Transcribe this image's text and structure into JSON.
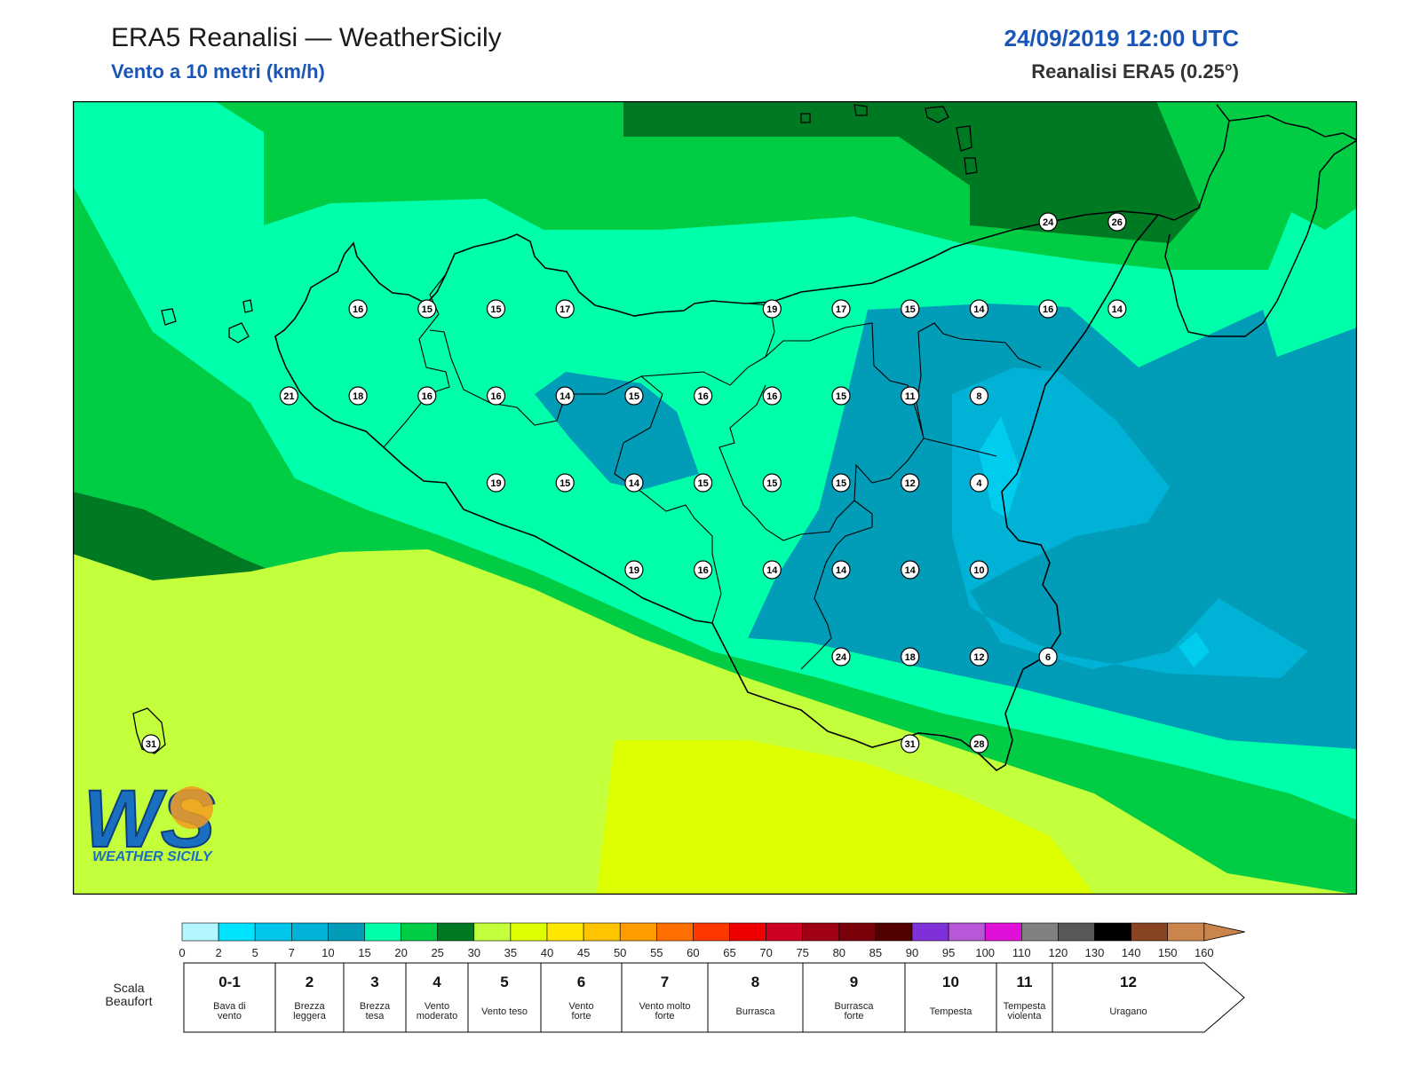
{
  "header": {
    "title": "ERA5 Reanalisi — WeatherSicily",
    "subtitle": "Vento a 10 metri (km/h)",
    "datetime": "24/09/2019 12:00 UTC",
    "model": "Reanalisi ERA5 (0.25°)"
  },
  "logo": {
    "text": "WS",
    "caption": "WEATHER SICILY"
  },
  "stations": [
    {
      "value": "16",
      "x": 6.8,
      "y": 52.9
    },
    {
      "value": "15",
      "x": 7.55,
      "y": 52.9
    },
    {
      "value": "15",
      "x": 8.3,
      "y": 52.9
    },
    {
      "value": "17",
      "x": 9.05,
      "y": 52.9
    },
    {
      "value": "19",
      "x": 11.3,
      "y": 52.9
    },
    {
      "value": "17",
      "x": 12.05,
      "y": 52.9
    },
    {
      "value": "15",
      "x": 12.8,
      "y": 52.9
    },
    {
      "value": "14",
      "x": 13.55,
      "y": 52.9
    },
    {
      "value": "16",
      "x": 14.3,
      "y": 52.9
    },
    {
      "value": "14",
      "x": 15.05,
      "y": 52.9
    },
    {
      "value": "21",
      "x": 6.05,
      "y": 52.15
    },
    {
      "value": "18",
      "x": 6.8,
      "y": 52.15
    },
    {
      "value": "16",
      "x": 7.55,
      "y": 52.15
    },
    {
      "value": "16",
      "x": 8.3,
      "y": 52.15
    },
    {
      "value": "14",
      "x": 9.05,
      "y": 52.15
    },
    {
      "value": "15",
      "x": 9.8,
      "y": 52.15
    },
    {
      "value": "16",
      "x": 10.55,
      "y": 52.15
    },
    {
      "value": "16",
      "x": 11.3,
      "y": 52.15
    },
    {
      "value": "15",
      "x": 12.05,
      "y": 52.15
    },
    {
      "value": "11",
      "x": 12.8,
      "y": 52.15
    },
    {
      "value": "8",
      "x": 13.55,
      "y": 52.15
    },
    {
      "value": "19",
      "x": 8.3,
      "y": 51.4
    },
    {
      "value": "15",
      "x": 9.05,
      "y": 51.4
    },
    {
      "value": "14",
      "x": 9.8,
      "y": 51.4
    },
    {
      "value": "15",
      "x": 10.55,
      "y": 51.4
    },
    {
      "value": "15",
      "x": 11.3,
      "y": 51.4
    },
    {
      "value": "15",
      "x": 12.05,
      "y": 51.4
    },
    {
      "value": "12",
      "x": 12.8,
      "y": 51.4
    },
    {
      "value": "4",
      "x": 13.55,
      "y": 51.4
    },
    {
      "value": "19",
      "x": 9.8,
      "y": 50.65
    },
    {
      "value": "16",
      "x": 10.55,
      "y": 50.65
    },
    {
      "value": "14",
      "x": 11.3,
      "y": 50.65
    },
    {
      "value": "14",
      "x": 12.05,
      "y": 50.65
    },
    {
      "value": "14",
      "x": 12.8,
      "y": 50.65
    },
    {
      "value": "10",
      "x": 13.55,
      "y": 50.65
    },
    {
      "value": "24",
      "x": 12.05,
      "y": 49.9
    },
    {
      "value": "18",
      "x": 12.8,
      "y": 49.9
    },
    {
      "value": "12",
      "x": 13.55,
      "y": 49.9
    },
    {
      "value": "6",
      "x": 14.3,
      "y": 49.9
    },
    {
      "value": "31",
      "x": 4.55,
      "y": 49.15
    },
    {
      "value": "31",
      "x": 12.8,
      "y": 49.15
    },
    {
      "value": "28",
      "x": 13.55,
      "y": 49.15
    },
    {
      "value": "24",
      "x": 14.3,
      "y": 53.65
    },
    {
      "value": "26",
      "x": 15.05,
      "y": 53.65
    }
  ],
  "colorbar": {
    "colors": [
      "#b4f6ff",
      "#00e3fe",
      "#00c6ec",
      "#00b2d6",
      "#009cb8",
      "#00ffaa",
      "#00cc44",
      "#007a22",
      "#c3ff3b",
      "#ddff00",
      "#ffe600",
      "#ffc400",
      "#ff9c00",
      "#ff6e00",
      "#ff3800",
      "#ee0000",
      "#cc0022",
      "#a00014",
      "#7a000a",
      "#520000",
      "#8030d8",
      "#b858d8",
      "#e010d8",
      "#808080",
      "#585858",
      "#000000",
      "#884422",
      "#c9854c"
    ],
    "ticks": [
      "0",
      "2",
      "5",
      "7",
      "10",
      "15",
      "20",
      "25",
      "30",
      "35",
      "40",
      "45",
      "50",
      "55",
      "60",
      "65",
      "70",
      "75",
      "80",
      "85",
      "90",
      "95",
      "100",
      "110",
      "120",
      "130",
      "140",
      "150",
      "160"
    ]
  },
  "beaufort": {
    "label": "Scala\nBeaufort",
    "cells": [
      {
        "num": "0-1",
        "desc": "Bava di\nvento"
      },
      {
        "num": "2",
        "desc": "Brezza\nleggera"
      },
      {
        "num": "3",
        "desc": "Brezza\ntesa"
      },
      {
        "num": "4",
        "desc": "Vento\nmoderato"
      },
      {
        "num": "5",
        "desc": "Vento teso"
      },
      {
        "num": "6",
        "desc": "Vento\nforte"
      },
      {
        "num": "7",
        "desc": "Vento molto\nforte"
      },
      {
        "num": "8",
        "desc": "Burrasca"
      },
      {
        "num": "9",
        "desc": "Burrasca\nforte"
      },
      {
        "num": "10",
        "desc": "Tempesta"
      },
      {
        "num": "11",
        "desc": "Tempesta\nviolenta"
      },
      {
        "num": "12",
        "desc": "Uragano"
      }
    ]
  }
}
